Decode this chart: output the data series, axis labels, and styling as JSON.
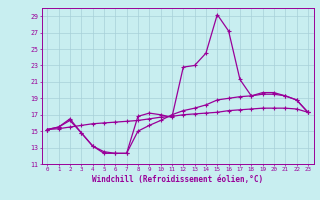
{
  "title": "",
  "xlabel": "Windchill (Refroidissement éolien,°C)",
  "background_color": "#c8eef0",
  "grid_color": "#a8d0d8",
  "line_color": "#990099",
  "xlim": [
    -0.5,
    23.5
  ],
  "ylim": [
    11,
    30
  ],
  "yticks": [
    11,
    13,
    15,
    17,
    19,
    21,
    23,
    25,
    27,
    29
  ],
  "xticks": [
    0,
    1,
    2,
    3,
    4,
    5,
    6,
    7,
    8,
    9,
    10,
    11,
    12,
    13,
    14,
    15,
    16,
    17,
    18,
    19,
    20,
    21,
    22,
    23
  ],
  "series1_x": [
    0,
    1,
    2,
    3,
    4,
    5,
    6,
    7,
    8,
    9,
    10,
    11,
    12,
    13,
    14,
    15,
    16,
    17,
    18,
    19,
    20,
    21,
    22,
    23
  ],
  "series1_y": [
    15.2,
    15.5,
    16.5,
    14.8,
    13.2,
    12.5,
    12.3,
    12.3,
    16.8,
    17.2,
    17.0,
    16.7,
    22.8,
    23.0,
    24.5,
    29.2,
    27.2,
    21.3,
    19.3,
    19.7,
    19.7,
    19.3,
    18.8,
    17.3
  ],
  "series2_x": [
    0,
    1,
    2,
    3,
    4,
    5,
    6,
    7,
    8,
    9,
    10,
    11,
    12,
    13,
    14,
    15,
    16,
    17,
    18,
    19,
    20,
    21,
    22,
    23
  ],
  "series2_y": [
    15.2,
    15.5,
    16.3,
    14.8,
    13.2,
    12.3,
    12.3,
    12.3,
    15.0,
    15.7,
    16.3,
    17.0,
    17.5,
    17.8,
    18.2,
    18.8,
    19.0,
    19.2,
    19.3,
    19.5,
    19.5,
    19.3,
    18.8,
    17.3
  ],
  "series3_x": [
    0,
    1,
    2,
    3,
    4,
    5,
    6,
    7,
    8,
    9,
    10,
    11,
    12,
    13,
    14,
    15,
    16,
    17,
    18,
    19,
    20,
    21,
    22,
    23
  ],
  "series3_y": [
    15.2,
    15.3,
    15.5,
    15.7,
    15.9,
    16.0,
    16.1,
    16.2,
    16.3,
    16.5,
    16.7,
    16.8,
    17.0,
    17.1,
    17.2,
    17.3,
    17.5,
    17.6,
    17.7,
    17.8,
    17.8,
    17.8,
    17.7,
    17.3
  ]
}
